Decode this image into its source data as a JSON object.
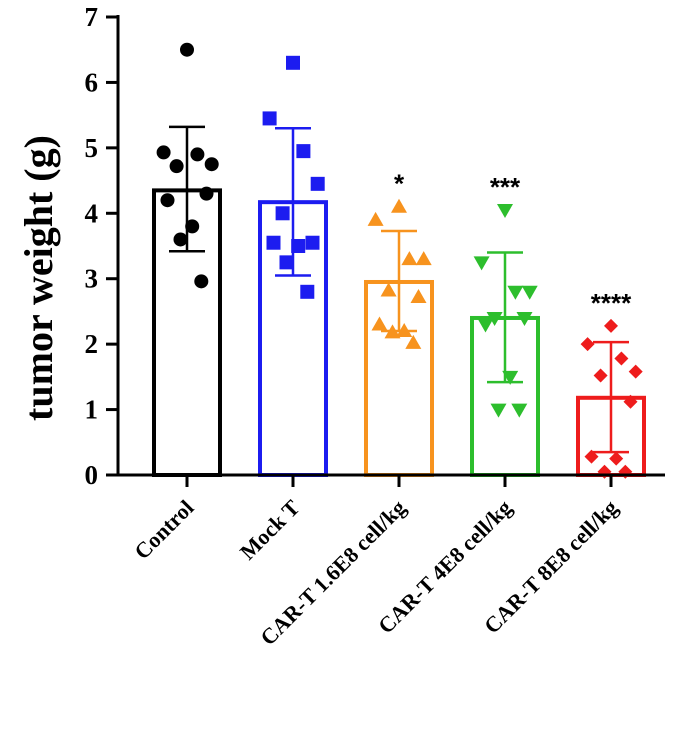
{
  "chart_data": {
    "type": "bar",
    "title": "",
    "xlabel": "",
    "ylabel": "tumor weight (g)",
    "ylim": [
      0,
      7
    ],
    "yticks": [
      0,
      1,
      2,
      3,
      4,
      5,
      6,
      7
    ],
    "grid": false,
    "legend": "none",
    "categories": [
      "Control",
      "Mock T",
      "CAR-T 1.6E8 cell/kg",
      "CAR-T 4E8 cell/kg",
      "CAR-T 8E8 cell/kg"
    ],
    "series": [
      {
        "name": "Control",
        "color": "#000000",
        "marker": "circle",
        "mean": 4.35,
        "error_high": 5.32,
        "error_low": 3.42,
        "points": [
          6.5,
          4.93,
          4.9,
          4.75,
          4.72,
          4.3,
          4.2,
          3.8,
          3.6,
          2.96
        ],
        "significance": ""
      },
      {
        "name": "Mock T",
        "color": "#1c1cf0",
        "marker": "square",
        "mean": 4.17,
        "error_high": 5.3,
        "error_low": 3.05,
        "points": [
          6.3,
          5.45,
          4.95,
          4.45,
          4.0,
          3.55,
          3.55,
          3.5,
          3.25,
          2.8
        ],
        "significance": ""
      },
      {
        "name": "CAR-T 1.6E8 cell/kg",
        "color": "#f7931e",
        "marker": "triangle-up",
        "mean": 2.95,
        "error_high": 3.73,
        "error_low": 2.2,
        "points": [
          4.1,
          3.9,
          3.3,
          3.3,
          2.82,
          2.72,
          2.3,
          2.2,
          2.18,
          2.02
        ],
        "significance": "*"
      },
      {
        "name": "CAR-T 4E8 cell/kg",
        "color": "#2dbe2d",
        "marker": "triangle-down",
        "mean": 2.4,
        "error_high": 3.4,
        "error_low": 1.42,
        "points": [
          4.05,
          3.25,
          2.8,
          2.8,
          2.4,
          2.4,
          2.3,
          1.5,
          1.0,
          1.0
        ],
        "significance": "***"
      },
      {
        "name": "CAR-T 8E8 cell/kg",
        "color": "#ee1c1c",
        "marker": "diamond",
        "mean": 1.18,
        "error_high": 2.03,
        "error_low": 0.35,
        "points": [
          2.28,
          2.0,
          1.78,
          1.58,
          1.52,
          1.12,
          0.28,
          0.25,
          0.05,
          0.05
        ],
        "significance": "****"
      }
    ]
  }
}
